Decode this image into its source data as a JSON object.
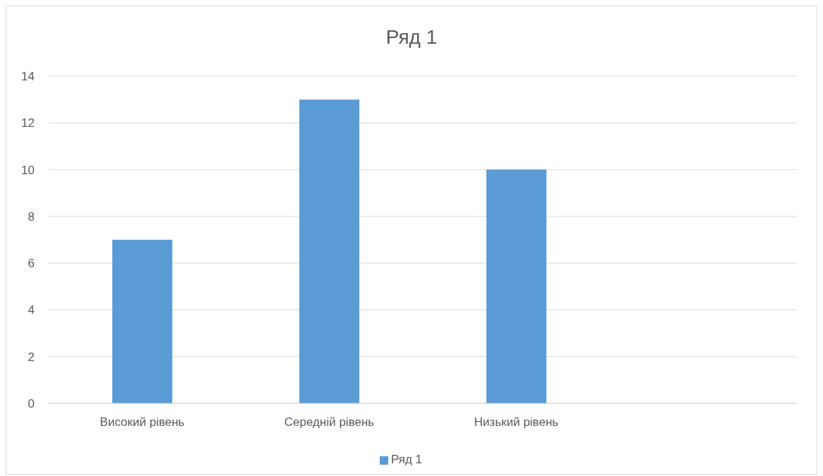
{
  "chart_data": {
    "type": "bar",
    "title": "Ряд 1",
    "categories": [
      "Високий рівень",
      "Середній рівень",
      "Низький рівень",
      null
    ],
    "series": [
      {
        "name": "Ряд 1",
        "color": "#5b9bd5",
        "values": [
          7,
          13,
          10,
          null
        ]
      }
    ],
    "ylim": [
      0,
      14
    ],
    "yticks": [
      0,
      2,
      4,
      6,
      8,
      10,
      12,
      14
    ],
    "grid": "y",
    "legend": "bottom"
  }
}
